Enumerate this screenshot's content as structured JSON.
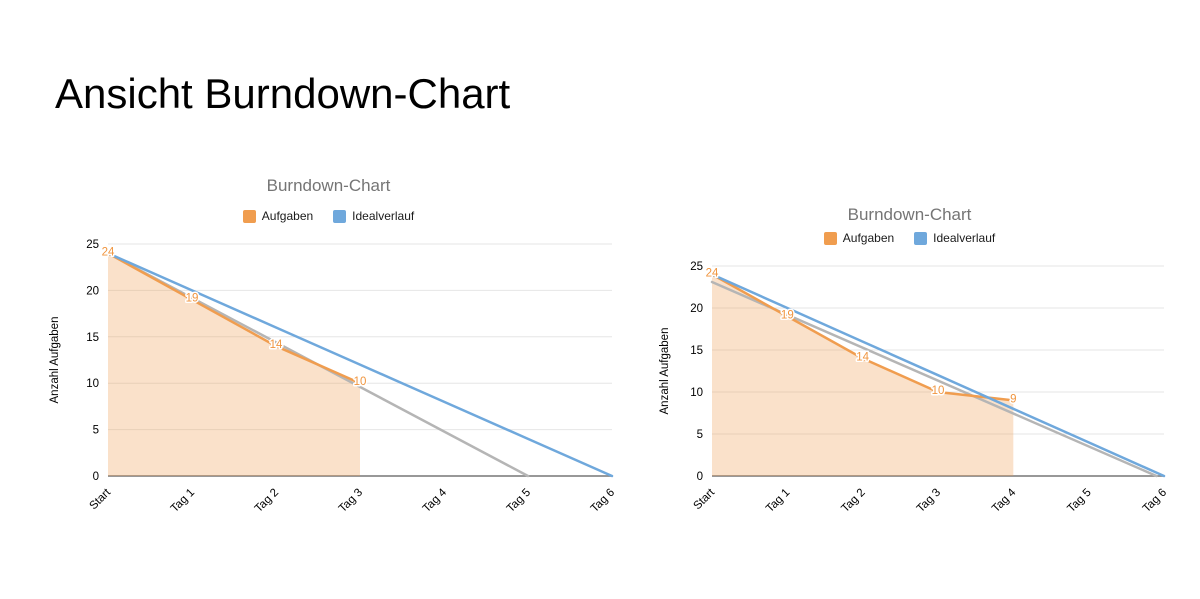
{
  "slide": {
    "title": "Ansicht Burndown-Chart"
  },
  "colors": {
    "aufgaben": "#f09d4f",
    "idealverlauf": "#6fa8dc",
    "trend": "#b5b5b5",
    "area_fill": "rgba(240,157,79,0.30)",
    "chart_title": "#757575",
    "grid": "#e6e6e6",
    "axis_line": "#8a8a8a",
    "tick_label": "#000000",
    "point_label": "#f0953f"
  },
  "chart_data": [
    {
      "type": "line",
      "title": "Burndown-Chart",
      "ylabel": "Anzahl Aufgaben",
      "categories": [
        "Start",
        "Tag 1",
        "Tag 2",
        "Tag 3",
        "Tag 4",
        "Tag 5",
        "Tag 6"
      ],
      "ylim": [
        0,
        25
      ],
      "yticks": [
        0,
        5,
        10,
        15,
        20,
        25
      ],
      "grid": true,
      "legend_position": "top",
      "legend": [
        {
          "label": "Aufgaben",
          "color": "#f09d4f"
        },
        {
          "label": "Idealverlauf",
          "color": "#6fa8dc"
        }
      ],
      "series": [
        {
          "name": "Trendlinie",
          "color": "#b5b5b5",
          "xy": [
            [
              0,
              24
            ],
            [
              5,
              0
            ]
          ]
        },
        {
          "name": "Aufgaben",
          "color": "#f09d4f",
          "area": true,
          "point_labels": true,
          "values": [
            24,
            19,
            14,
            10
          ]
        },
        {
          "name": "Idealverlauf",
          "color": "#6fa8dc",
          "values": [
            24,
            20,
            16,
            12,
            8,
            4,
            0
          ]
        }
      ]
    },
    {
      "type": "line",
      "title": "Burndown-Chart",
      "ylabel": "Anzahl Aufgaben",
      "categories": [
        "Start",
        "Tag 1",
        "Tag 2",
        "Tag 3",
        "Tag 4",
        "Tag 5",
        "Tag 6"
      ],
      "ylim": [
        0,
        25
      ],
      "yticks": [
        0,
        5,
        10,
        15,
        20,
        25
      ],
      "grid": true,
      "legend_position": "top",
      "legend": [
        {
          "label": "Aufgaben",
          "color": "#f09d4f"
        },
        {
          "label": "Idealverlauf",
          "color": "#6fa8dc"
        }
      ],
      "series": [
        {
          "name": "Trendlinie",
          "color": "#b5b5b5",
          "xy": [
            [
              0,
              23.1
            ],
            [
              5.9,
              0
            ]
          ]
        },
        {
          "name": "Aufgaben",
          "color": "#f09d4f",
          "area": true,
          "point_labels": true,
          "values": [
            24,
            19,
            14,
            10,
            9
          ]
        },
        {
          "name": "Idealverlauf",
          "color": "#6fa8dc",
          "values": [
            24,
            20,
            16,
            12,
            8,
            4,
            0
          ]
        }
      ]
    }
  ]
}
